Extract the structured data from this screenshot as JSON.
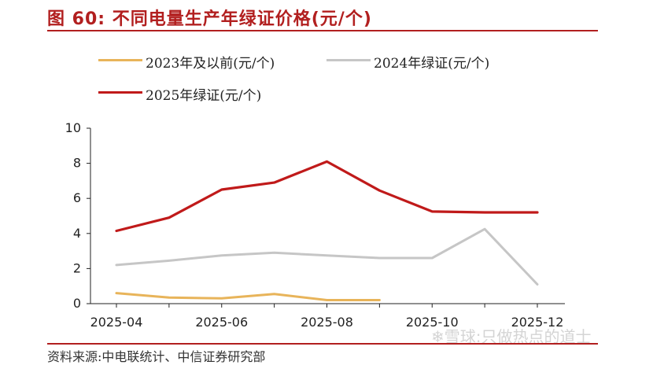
{
  "header": {
    "title": "图 60:  不同电量生产年绿证价格(元/个)"
  },
  "footer": {
    "source": "资料来源:中电联统计、中信证券研究部",
    "watermark": "❄雪球:只做热点的道士"
  },
  "colors": {
    "accent": "#b21f1f",
    "series_2023": "#e8b45a",
    "series_2024": "#c6c6c6",
    "series_2025": "#c01a1a"
  },
  "chart_data": {
    "type": "line",
    "title": "",
    "xlabel": "",
    "ylabel": "",
    "ylim": [
      0,
      10
    ],
    "yticks": [
      "0",
      "2",
      "4",
      "6",
      "8",
      "10"
    ],
    "xtick_labels": [
      "2025-04",
      "2025-06",
      "2025-08",
      "2025-10",
      "2025-12"
    ],
    "x": [
      "2025-04",
      "2025-05",
      "2025-06",
      "2025-07",
      "2025-08",
      "2025-09",
      "2025-10",
      "2025-11",
      "2025-12"
    ],
    "legend_position": "top",
    "grid": false,
    "series": [
      {
        "name": "2023年及以前(元/个)",
        "color": "#e8b45a",
        "values": [
          0.6,
          0.35,
          0.3,
          0.55,
          0.2,
          0.2,
          null,
          null,
          null
        ]
      },
      {
        "name": "2024年绿证(元/个)",
        "color": "#c6c6c6",
        "values": [
          2.2,
          2.45,
          2.75,
          2.9,
          2.75,
          2.6,
          2.6,
          4.25,
          1.1
        ]
      },
      {
        "name": "2025年绿证(元/个)",
        "color": "#c01a1a",
        "values": [
          4.15,
          4.9,
          6.5,
          6.9,
          8.1,
          6.45,
          5.25,
          5.2,
          5.2
        ]
      }
    ]
  }
}
